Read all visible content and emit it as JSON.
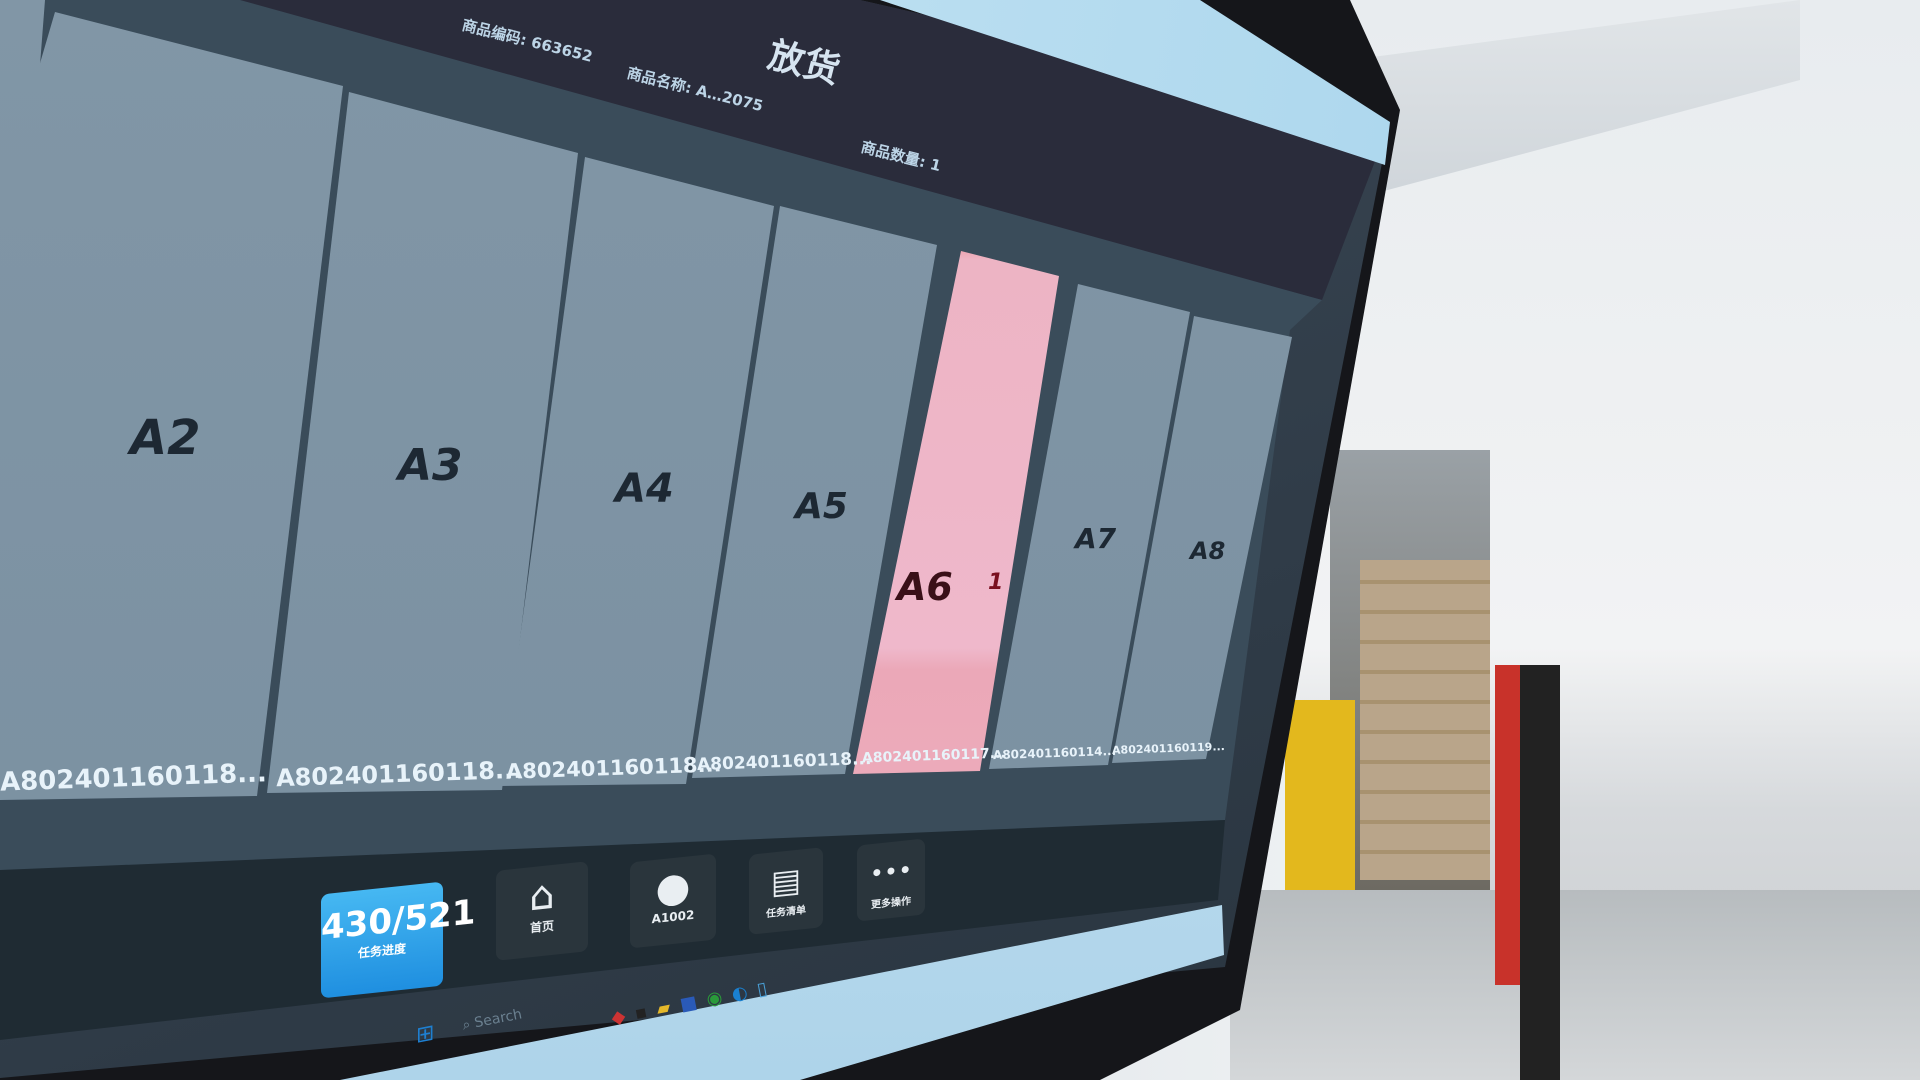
{
  "header": {
    "title": "放货",
    "product_code": "商品编码: 663652",
    "product_name": "商品名称: A…2075",
    "quantity": "商品数量: 1"
  },
  "slots": [
    {
      "label": "A2",
      "code": "A802401160118..."
    },
    {
      "label": "A3",
      "code": "A802401160118..."
    },
    {
      "label": "A4",
      "code": "A802401160118..."
    },
    {
      "label": "A5",
      "code": "A802401160118..."
    },
    {
      "label": "A6",
      "code": "A802401160117...",
      "highlighted": true,
      "badge": "1"
    },
    {
      "label": "A7",
      "code": "A802401160114..."
    },
    {
      "label": "A8",
      "code": "A802401160119..."
    }
  ],
  "nav": {
    "progress_value": "430/521",
    "progress_label": "任务进度",
    "home": "首页",
    "user": "A1002",
    "list": "任务清单",
    "more": "更多操作"
  },
  "taskbar": {
    "search_placeholder": "Search"
  },
  "colors": {
    "highlight": "#efb8cb",
    "slot": "#7a90a1",
    "progress": "#1f8fe0"
  }
}
